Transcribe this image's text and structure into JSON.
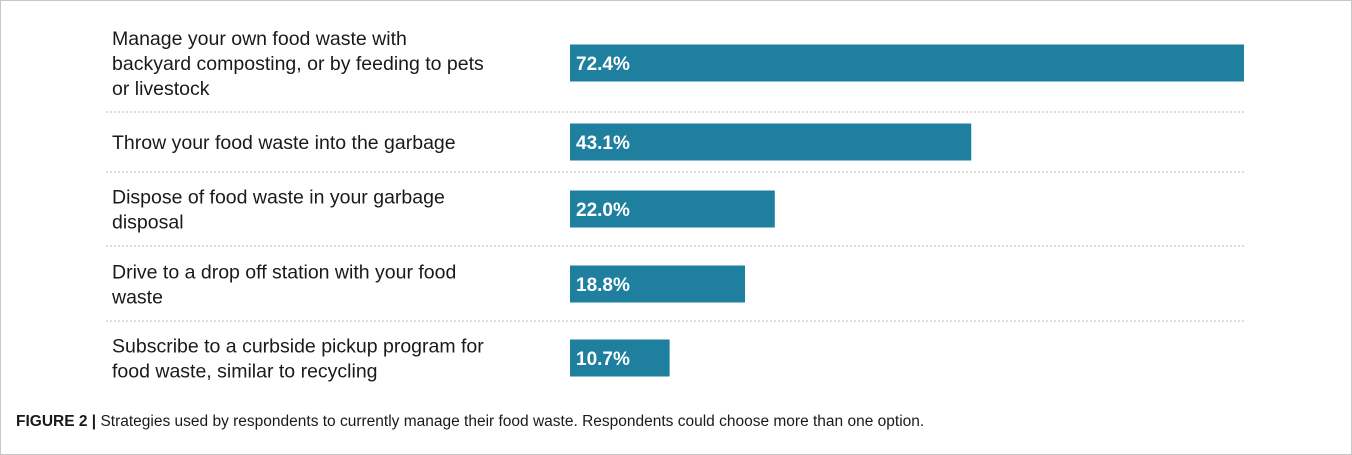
{
  "chart_data": {
    "type": "bar",
    "orientation": "horizontal",
    "categories": [
      "Manage your own food waste with backyard composting, or by feeding to pets or livestock",
      "Throw your food waste into the garbage",
      "Dispose of food waste in your garbage disposal",
      "Drive to a drop off station with your food waste",
      "Subscribe to a curbside pickup program for food waste, similar to recycling"
    ],
    "category_lines": [
      [
        "Manage your own food waste with",
        "backyard composting, or by feeding to pets",
        "or livestock"
      ],
      [
        "Throw your food waste into the garbage"
      ],
      [
        "Dispose of food waste in your garbage",
        "disposal"
      ],
      [
        "Drive to a drop off station with your food",
        "waste"
      ],
      [
        "Subscribe to a curbside pickup program for",
        "food waste, similar to recycling"
      ]
    ],
    "values": [
      72.4,
      43.1,
      22.0,
      18.8,
      10.7
    ],
    "value_labels": [
      "72.4%",
      "43.1%",
      "22.0%",
      "18.8%",
      "10.7%"
    ],
    "bar_color": "#1f7f9f",
    "label_color": "#ffffff",
    "separator_color": "#bdbdbd",
    "grid": false
  },
  "caption": {
    "label": "FIGURE 2 |",
    "text": " Strategies used by respondents to currently manage their food waste. Respondents could choose more than one option."
  }
}
